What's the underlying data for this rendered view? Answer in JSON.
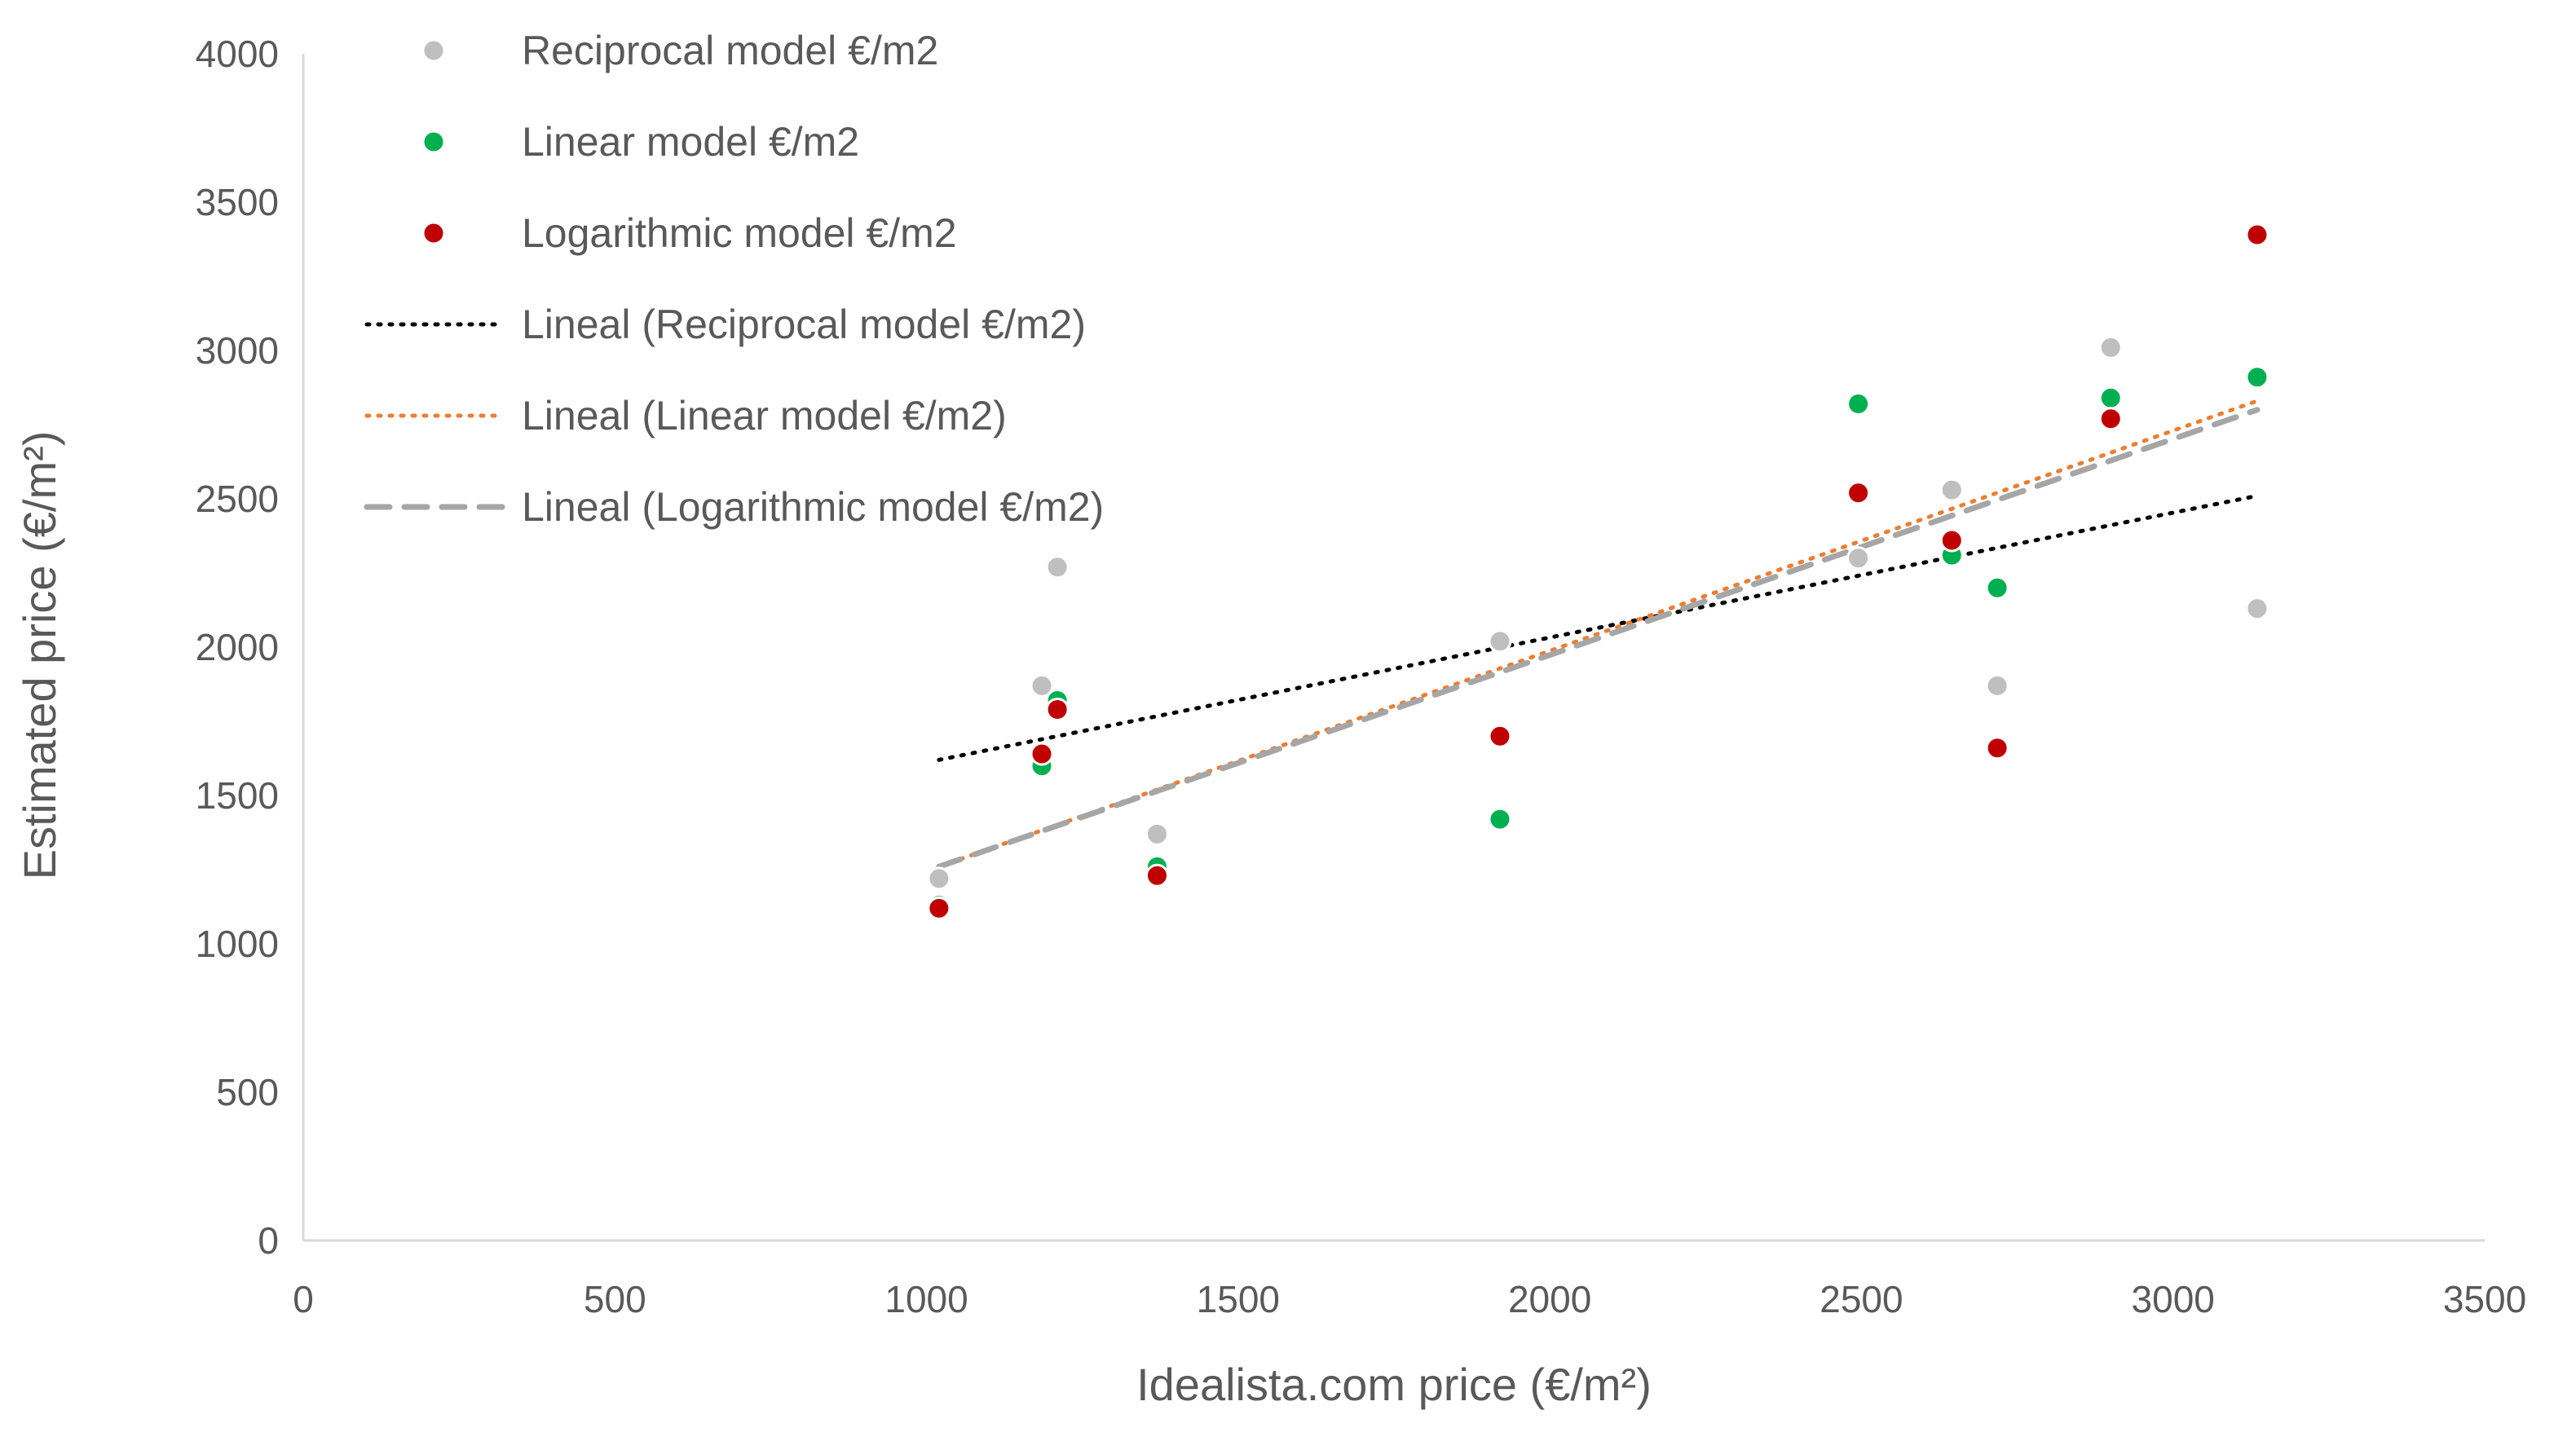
{
  "chart_data": {
    "type": "scatter",
    "title": "",
    "xlabel": "Idealista.com price (€/m²)",
    "ylabel": "Estimated price (€/m²)",
    "xlim": [
      0,
      3500
    ],
    "ylim": [
      0,
      4000
    ],
    "x_ticks": [
      0,
      500,
      1000,
      1500,
      2000,
      2500,
      3000,
      3500
    ],
    "y_ticks": [
      0,
      500,
      1000,
      1500,
      2000,
      2500,
      3000,
      3500,
      4000
    ],
    "x_tick_labels": [
      "0",
      "500",
      "1000",
      "1500",
      "2000",
      "2500",
      "3000",
      "3500"
    ],
    "y_tick_labels": [
      "0",
      "500",
      "1000",
      "1500",
      "2000",
      "2500",
      "3000",
      "3500",
      "4000"
    ],
    "grid": false,
    "legend_position": "top-left",
    "series": [
      {
        "name": "Reciprocal model €/m2",
        "color": "#bfbfbf",
        "x": [
          1020,
          1185,
          1210,
          1370,
          1920,
          2495,
          2645,
          2718,
          2900,
          3135
        ],
        "y": [
          1220,
          1870,
          2270,
          1370,
          2020,
          2300,
          2530,
          1870,
          3010,
          2130
        ]
      },
      {
        "name": "Linear model €/m2",
        "color": "#00b050",
        "x": [
          1020,
          1185,
          1210,
          1370,
          1920,
          2495,
          2645,
          2718,
          2900,
          3135
        ],
        "y": [
          1130,
          1600,
          1820,
          1260,
          1420,
          2820,
          2310,
          2200,
          2840,
          2910
        ]
      },
      {
        "name": "Logarithmic model €/m2",
        "color": "#c00000",
        "x": [
          1020,
          1185,
          1210,
          1370,
          1920,
          2495,
          2645,
          2718,
          2900,
          3135
        ],
        "y": [
          1120,
          1640,
          1790,
          1230,
          1700,
          2520,
          2360,
          1660,
          2770,
          3390
        ]
      }
    ],
    "trendlines": [
      {
        "name": "Lineal (Reciprocal model €/m2)",
        "color": "#000000",
        "style": "dotted",
        "x": [
          1020,
          3135
        ],
        "y": [
          1620,
          2510
        ]
      },
      {
        "name": "Lineal (Linear model €/m2)",
        "color": "#ed7d31",
        "style": "dotted",
        "x": [
          1020,
          3135
        ],
        "y": [
          1260,
          2830
        ]
      },
      {
        "name": "Lineal (Logarithmic model €/m2)",
        "color": "#a6a6a6",
        "style": "dashed",
        "x": [
          1020,
          3135
        ],
        "y": [
          1260,
          2800
        ]
      }
    ]
  }
}
